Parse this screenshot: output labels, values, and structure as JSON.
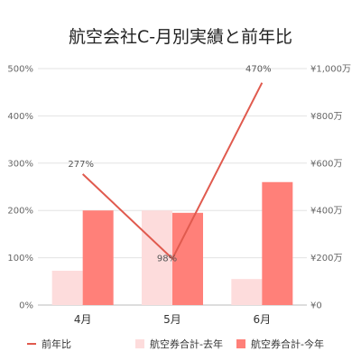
{
  "chart_data": {
    "type": "bar",
    "title": "航空会社C-月別実績と前年比",
    "categories": [
      "4月",
      "5月",
      "6月"
    ],
    "series": [
      {
        "name": "航空券合計-去年",
        "type": "bar",
        "axis": "right",
        "color": "#fddcdc",
        "values": [
          145,
          400,
          110
        ]
      },
      {
        "name": "航空券合計-今年",
        "type": "bar",
        "axis": "right",
        "color": "#ff8079",
        "values": [
          400,
          390,
          520
        ]
      },
      {
        "name": "前年比",
        "type": "line",
        "axis": "left",
        "color": "#e05a4e",
        "values": [
          277,
          98,
          470
        ],
        "labels": [
          "277%",
          "98%",
          "470%"
        ]
      }
    ],
    "left_axis": {
      "ticks": [
        "0%",
        "100%",
        "200%",
        "300%",
        "400%",
        "500%"
      ],
      "range": [
        0,
        500
      ]
    },
    "right_axis": {
      "ticks": [
        "¥0",
        "¥200万",
        "¥400万",
        "¥600万",
        "¥800万",
        "¥1,000万"
      ],
      "range": [
        0,
        1000
      ]
    },
    "legend": {
      "position": "bottom",
      "items": [
        "前年比",
        "航空券合計-去年",
        "航空券合計-今年"
      ]
    },
    "grid": true
  }
}
